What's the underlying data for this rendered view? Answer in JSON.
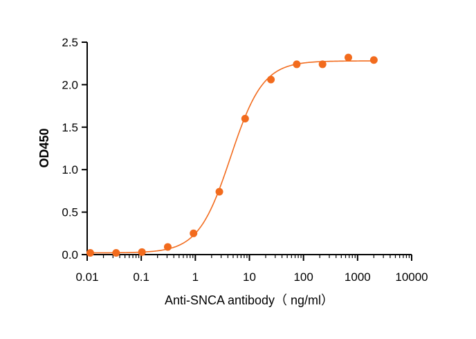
{
  "chart_data": {
    "type": "scatter",
    "title": "",
    "xlabel": "Anti-SNCA antibody（ ng/ml）",
    "ylabel": "OD450",
    "x_scale": "log",
    "xlim": [
      0.01,
      10000
    ],
    "ylim": [
      0,
      2.5
    ],
    "x_ticks": [
      0.01,
      0.1,
      1,
      10,
      100,
      1000,
      10000
    ],
    "x_tick_labels": [
      "0.01",
      "0.1",
      "1",
      "10",
      "100",
      "1000",
      "10000"
    ],
    "y_ticks": [
      0,
      0.5,
      1.0,
      1.5,
      2.0,
      2.5
    ],
    "y_tick_labels": [
      "0.0",
      "0.5",
      "1.0",
      "1.5",
      "2.0",
      "2.5"
    ],
    "grid": false,
    "legend": "none",
    "series": [
      {
        "x": [
          0.0114,
          0.0343,
          0.103,
          0.309,
          0.926,
          2.78,
          8.33,
          25,
          75,
          225,
          675,
          2000
        ],
        "y": [
          0.02,
          0.02,
          0.03,
          0.09,
          0.25,
          0.74,
          1.6,
          2.06,
          2.24,
          2.24,
          2.32,
          2.29
        ],
        "color": "#f26b1d",
        "fit": "4PL",
        "fit_params": {
          "bottom": 0.02,
          "top": 2.28,
          "ec50": 4.5,
          "hill": 1.45
        }
      }
    ]
  }
}
